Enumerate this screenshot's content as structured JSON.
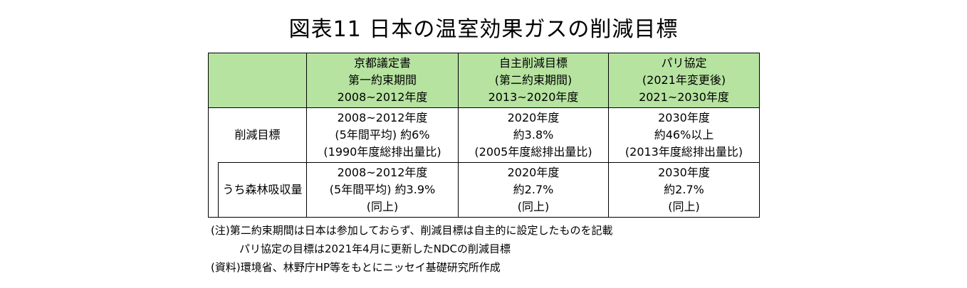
{
  "title": "図表11 日本の温室効果ガスの削減目標",
  "table": {
    "headers": [
      {
        "lines": [
          "京都議定書",
          "第一約束期間",
          "2008~2012年度"
        ]
      },
      {
        "lines": [
          "自主削減目標",
          "(第二約束期間)",
          "2013~2020年度"
        ]
      },
      {
        "lines": [
          "パリ協定",
          "(2021年変更後)",
          "2021~2030年度"
        ]
      }
    ],
    "rows": [
      {
        "label": "削減目標",
        "cells": [
          {
            "lines": [
              "2008~2012年度",
              "(5年間平均) 約6%",
              "(1990年度総排出量比)"
            ]
          },
          {
            "lines": [
              "2020年度",
              "約3.8%",
              "(2005年度総排出量比)"
            ]
          },
          {
            "lines": [
              "2030年度",
              "約46%以上",
              "(2013年度総排出量比)"
            ]
          }
        ]
      },
      {
        "label": "うち森林吸収量",
        "cells": [
          {
            "lines": [
              "2008~2012年度",
              "(5年間平均) 約3.9%",
              "(同上)"
            ]
          },
          {
            "lines": [
              "2020年度",
              "約2.7%",
              "(同上)"
            ]
          },
          {
            "lines": [
              "2030年度",
              "約2.7%",
              "(同上)"
            ]
          }
        ]
      }
    ]
  },
  "notes": [
    "(注)第二約束期間は日本は参加しておらず、削減目標は自主的に設定したものを記載",
    "パリ協定の目標は2021年4月に更新したNDCの削減目標",
    "(資料)環境省、林野庁HP等をもとにニッセイ基礎研究所作成"
  ],
  "colors": {
    "header_bg": "#b6e3a0",
    "border": "#000000"
  }
}
